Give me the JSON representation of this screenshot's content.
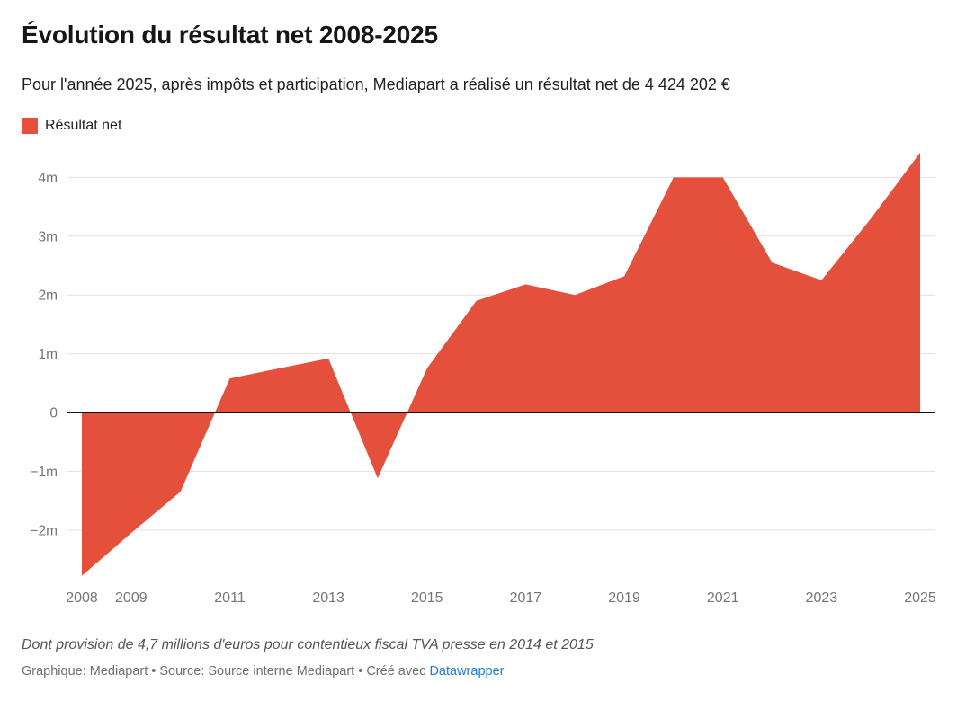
{
  "header": {
    "title": "Évolution du résultat net 2008-2025",
    "subtitle": "Pour l'année 2025, après impôts et participation, Mediapart a réalisé un résultat net de 4 424 202 €"
  },
  "legend": {
    "label": "Résultat net"
  },
  "chart_data": {
    "type": "area",
    "title": "Évolution du résultat net 2008-2025",
    "series": [
      {
        "name": "Résultat net",
        "x": [
          2008,
          2009,
          2010,
          2011,
          2012,
          2013,
          2014,
          2015,
          2016,
          2017,
          2018,
          2019,
          2020,
          2021,
          2022,
          2023,
          2024,
          2025
        ],
        "values_millions_eur": [
          -2.78,
          -2.05,
          -1.35,
          0.58,
          0.75,
          0.92,
          -1.12,
          0.75,
          1.9,
          2.18,
          2.0,
          2.32,
          4.0,
          4.0,
          2.55,
          2.25,
          3.3,
          4.42
        ]
      }
    ],
    "value_2025_exact_eur": "4 424 202 €",
    "baseline": 0,
    "ylim": [
      -2.85,
      4.55
    ],
    "grid": "horizontal",
    "legend_position": "top-left",
    "y_ticks": [
      {
        "value": 4,
        "label": "4m"
      },
      {
        "value": 3,
        "label": "3m"
      },
      {
        "value": 2,
        "label": "2m"
      },
      {
        "value": 1,
        "label": "1m"
      },
      {
        "value": 0,
        "label": "0"
      },
      {
        "value": -1,
        "label": "−1m"
      },
      {
        "value": -2,
        "label": "−2m"
      }
    ],
    "x_ticks": [
      2008,
      2009,
      2011,
      2013,
      2015,
      2017,
      2019,
      2021,
      2023,
      2025
    ]
  },
  "footer": {
    "note": "Dont provision de 4,7 millions d'euros pour contentieux fiscal TVA presse en 2014 et 2015",
    "credits_prefix": "Graphique: Mediapart • Source: Source interne Mediapart • Créé avec ",
    "credits_link": "Datawrapper"
  },
  "colors": {
    "area": "#e5503c",
    "grid_line": "#e0e0e0",
    "zero_line": "#111111",
    "tick_text": "#757575",
    "link_blue": "#1f7cd6"
  }
}
